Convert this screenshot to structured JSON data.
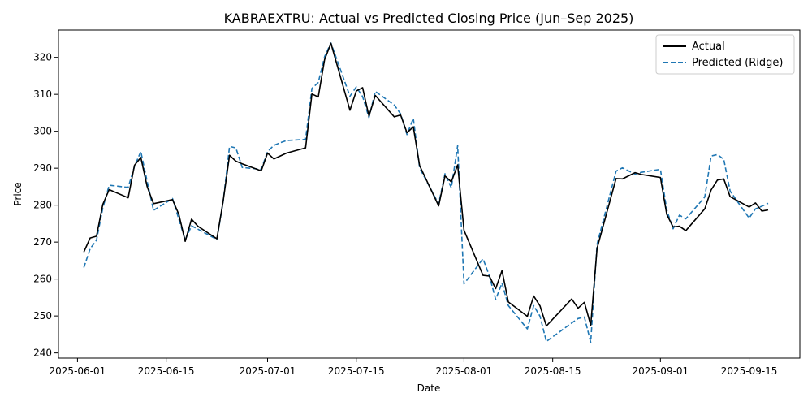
{
  "chart_data": {
    "type": "line",
    "title": "KABRAEXTRU: Actual vs Predicted Closing Price (Jun–Sep 2025)",
    "xlabel": "Date",
    "ylabel": "Price",
    "x_ticks": [
      "2025-06-01",
      "2025-06-15",
      "2025-07-01",
      "2025-07-15",
      "2025-08-01",
      "2025-08-15",
      "2025-09-01",
      "2025-09-15"
    ],
    "y_ticks": [
      240,
      250,
      260,
      270,
      280,
      290,
      300,
      310,
      320
    ],
    "xlim": [
      "2025-05-29",
      "2025-09-23"
    ],
    "ylim": [
      238.6,
      327.4
    ],
    "legend_position": "top-right",
    "grid": false,
    "x": [
      "2025-06-02",
      "2025-06-03",
      "2025-06-04",
      "2025-06-05",
      "2025-06-06",
      "2025-06-09",
      "2025-06-10",
      "2025-06-11",
      "2025-06-12",
      "2025-06-13",
      "2025-06-16",
      "2025-06-17",
      "2025-06-18",
      "2025-06-19",
      "2025-06-20",
      "2025-06-23",
      "2025-06-24",
      "2025-06-25",
      "2025-06-26",
      "2025-06-27",
      "2025-06-30",
      "2025-07-01",
      "2025-07-02",
      "2025-07-03",
      "2025-07-04",
      "2025-07-07",
      "2025-07-08",
      "2025-07-09",
      "2025-07-10",
      "2025-07-11",
      "2025-07-14",
      "2025-07-15",
      "2025-07-16",
      "2025-07-17",
      "2025-07-18",
      "2025-07-21",
      "2025-07-22",
      "2025-07-23",
      "2025-07-24",
      "2025-07-25",
      "2025-07-28",
      "2025-07-29",
      "2025-07-30",
      "2025-07-31",
      "2025-08-01",
      "2025-08-04",
      "2025-08-05",
      "2025-08-06",
      "2025-08-07",
      "2025-08-08",
      "2025-08-11",
      "2025-08-12",
      "2025-08-13",
      "2025-08-14",
      "2025-08-18",
      "2025-08-19",
      "2025-08-20",
      "2025-08-21",
      "2025-08-22",
      "2025-08-25",
      "2025-08-26",
      "2025-08-28",
      "2025-08-29",
      "2025-09-01",
      "2025-09-02",
      "2025-09-03",
      "2025-09-04",
      "2025-09-05",
      "2025-09-08",
      "2025-09-09",
      "2025-09-10",
      "2025-09-11",
      "2025-09-12",
      "2025-09-15",
      "2025-09-16",
      "2025-09-17",
      "2025-09-18"
    ],
    "series": [
      {
        "name": "Actual",
        "color": "#000000",
        "style": "solid",
        "values": [
          267.3,
          271.1,
          271.6,
          280.2,
          284.2,
          282.0,
          290.8,
          292.9,
          285.0,
          280.4,
          281.5,
          277.5,
          270.2,
          276.2,
          274.3,
          270.9,
          281.2,
          293.5,
          291.9,
          291.2,
          289.3,
          294.1,
          292.5,
          293.3,
          294.1,
          295.5,
          310.1,
          309.3,
          319.4,
          323.8,
          305.7,
          310.9,
          311.8,
          304.1,
          309.7,
          303.9,
          304.4,
          299.6,
          301.2,
          290.7,
          279.8,
          287.9,
          286.3,
          290.9,
          273.2,
          261.0,
          260.8,
          257.4,
          262.3,
          253.8,
          249.9,
          255.4,
          252.7,
          247.3,
          254.6,
          252.1,
          253.7,
          247.5,
          268.3,
          287.2,
          287.1,
          288.8,
          288.3,
          287.5,
          277.5,
          274.1,
          274.3,
          273.1,
          279.0,
          284.1,
          286.8,
          287.1,
          282.3,
          279.5,
          280.6,
          278.4,
          278.7
        ]
      },
      {
        "name": "Predicted (Ridge)",
        "color": "#1f77b4",
        "style": "dashed",
        "values": [
          263.1,
          268.2,
          270.5,
          279.2,
          285.4,
          284.8,
          290.5,
          294.5,
          286.4,
          278.6,
          281.8,
          276.2,
          270.6,
          274.4,
          273.5,
          270.7,
          281.1,
          295.9,
          295.5,
          290.2,
          289.7,
          294.5,
          296.2,
          296.9,
          297.5,
          297.8,
          311.6,
          313.2,
          320.2,
          323.9,
          309.5,
          312.0,
          309.4,
          303.7,
          310.8,
          307.1,
          304.7,
          299.1,
          303.5,
          290.1,
          280.3,
          288.5,
          284.7,
          296.1,
          258.7,
          265.5,
          260.9,
          254.5,
          258.9,
          252.8,
          246.5,
          252.8,
          249.9,
          243.1,
          248.1,
          249.3,
          249.7,
          242.9,
          269.4,
          289.2,
          290.1,
          288.4,
          288.9,
          289.7,
          278.7,
          273.6,
          277.3,
          276.3,
          282.2,
          293.3,
          293.7,
          292.4,
          283.8,
          276.5,
          279.0,
          279.7,
          280.5
        ]
      }
    ]
  }
}
